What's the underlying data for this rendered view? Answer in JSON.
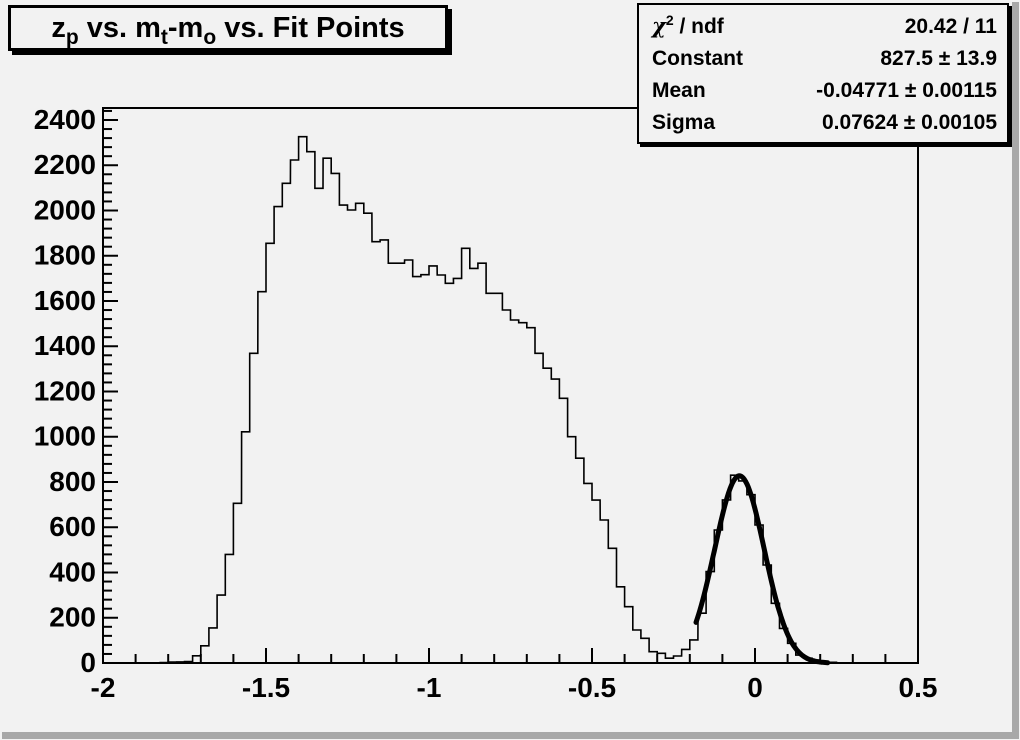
{
  "window": {
    "background": "#f2f2f2",
    "bevel_color": "#a8a8a8",
    "line_color": "#000000"
  },
  "title_box": {
    "text_plain": "z_p vs. m_t-m_o vs. Fit Points",
    "segments": [
      {
        "text": "z"
      },
      {
        "text": "p",
        "sub": true
      },
      {
        "text": " vs. m"
      },
      {
        "text": "t",
        "sub": true
      },
      {
        "text": "-m"
      },
      {
        "text": "o",
        "sub": true
      },
      {
        "text": " vs. Fit Points"
      }
    ]
  },
  "stats_box": {
    "rows": [
      {
        "symbol": "χ",
        "sup": "2",
        "label": " / ndf",
        "value": "20.42 / 11"
      },
      {
        "label": "Constant",
        "value": "827.5 ± 13.9"
      },
      {
        "label": "Mean",
        "value": "-0.04771 ± 0.00115"
      },
      {
        "label": "Sigma",
        "value": "0.07624 ± 0.00105"
      }
    ]
  },
  "chart_data": {
    "type": "bar",
    "variant": "step-histogram",
    "title": "z_p vs. m_t-m_o vs. Fit Points",
    "xlabel": "",
    "ylabel": "",
    "xlim": [
      -2.0,
      0.5
    ],
    "ylim": [
      0,
      2453
    ],
    "grid": false,
    "legend": "none",
    "x_ticks": [
      -2,
      -1.5,
      -1,
      -0.5,
      0,
      0.5
    ],
    "x_tick_labels": [
      "-2",
      "-1.5",
      "-1",
      "-0.5",
      "0",
      "0.5"
    ],
    "x_minor_tick_step": 0.1,
    "y_ticks": [
      0,
      200,
      400,
      600,
      800,
      1000,
      1200,
      1400,
      1600,
      1800,
      2000,
      2200,
      2400
    ],
    "y_tick_labels": [
      "0",
      "200",
      "400",
      "600",
      "800",
      "1000",
      "1200",
      "1400",
      "1600",
      "1800",
      "2000",
      "2200",
      "2400"
    ],
    "y_minor_tick_step": 40,
    "histogram": {
      "x_start": -2.0,
      "bin_width": 0.025,
      "counts": [
        0,
        0,
        0,
        0,
        0,
        0,
        0,
        2,
        4,
        5,
        6,
        32,
        76,
        155,
        300,
        480,
        706,
        1022,
        1369,
        1641,
        1855,
        2017,
        2120,
        2223,
        2326,
        2260,
        2098,
        2231,
        2164,
        2024,
        2002,
        2032,
        1988,
        1862,
        1870,
        1767,
        1767,
        1781,
        1708,
        1716,
        1755,
        1715,
        1678,
        1700,
        1833,
        1744,
        1767,
        1634,
        1634,
        1560,
        1516,
        1504,
        1482,
        1369,
        1303,
        1255,
        1170,
        1000,
        905,
        794,
        720,
        632,
        507,
        337,
        249,
        146,
        109,
        50,
        43,
        21,
        31,
        60,
        102,
        220,
        404,
        588,
        721,
        830,
        805,
        744,
        610,
        433,
        264,
        153,
        87,
        35,
        21,
        13,
        6,
        3,
        0,
        0,
        0,
        0,
        0,
        0,
        0,
        0,
        0,
        0
      ]
    },
    "fit_curve": {
      "shape": "gaussian",
      "constant": 827.5,
      "mean": -0.04771,
      "sigma": 0.07624,
      "draw_range": [
        -0.181,
        0.225
      ],
      "line_width": 5
    }
  }
}
